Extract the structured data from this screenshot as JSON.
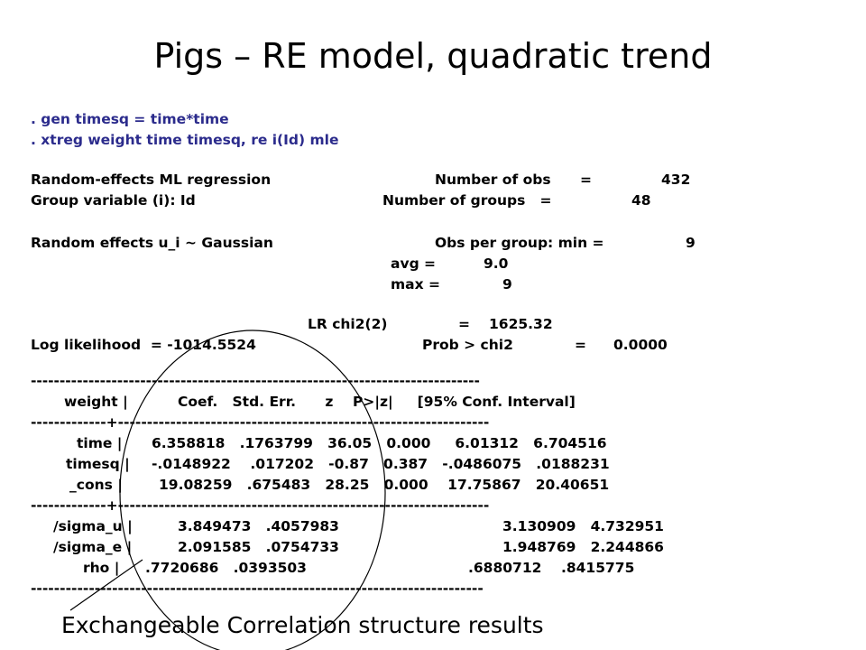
{
  "title": "Pigs – RE model, quadratic trend",
  "commands": [
    ". gen timesq = time*time",
    ". xtreg weight time timesq, re i(Id) mle"
  ],
  "header": {
    "model": "Random-effects ML regression",
    "nobs_label": "Number of obs      =",
    "nobs": "432",
    "group_label": "Group variable (i): Id",
    "ngroups_label": "Number of groups   =",
    "ngroups": "48",
    "re_label": "Random effects u_i ~ Gaussian",
    "opg_min_label": "Obs per group: min =",
    "opg_min": "9",
    "opg_avg_label": "avg =",
    "opg_avg": "9.0",
    "opg_max_label": "max =",
    "opg_max": "9",
    "lr_label": "LR chi2(2)",
    "lr_eq": "=",
    "lr_value": "1625.32",
    "ll_label": "Log likelihood  = -1014.5524",
    "prob_label": "Prob > chi2",
    "prob_eq": "=",
    "prob_value": "0.0000"
  },
  "table": {
    "rule": "------------------------------------------------------------------------------",
    "midrule": "-------------+----------------------------------------------------------------",
    "header_depvar": "weight |",
    "header_cols": "Coef.   Std. Err.      z    P>|z|     [95% Conf. Interval]",
    "rows": [
      {
        "var": "time |",
        "vals": "6.358818   .1763799   36.05   0.000     6.01312   6.704516"
      },
      {
        "var": "timesq |",
        "vals": "-.0148922    .017202   -0.87   0.387   -.0486075   .0188231"
      },
      {
        "var": "_cons |",
        "vals": "19.08259   .675483   28.25   0.000    17.75867   20.40651"
      }
    ],
    "var_rows": [
      {
        "var": "/sigma_u |",
        "vals": "3.849473   .4057983",
        "ci": "3.130909   4.732951"
      },
      {
        "var": "/sigma_e |",
        "vals": "2.091585   .0754733",
        "ci": "1.948769   2.244866"
      },
      {
        "var": "rho |",
        "vals": ".7720686   .0393503",
        "ci": ".6880712    .8415775"
      }
    ]
  },
  "caption": "Exchangeable Correlation structure results"
}
